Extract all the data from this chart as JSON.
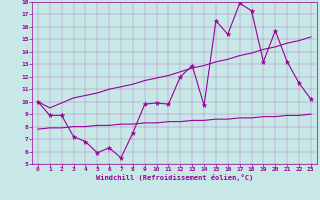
{
  "xlabel": "Windchill (Refroidissement éolien,°C)",
  "bg_color": "#c8e8e8",
  "line_color": "#990099",
  "xlim": [
    -0.5,
    23.5
  ],
  "ylim": [
    5,
    18
  ],
  "xticks": [
    0,
    1,
    2,
    3,
    4,
    5,
    6,
    7,
    8,
    9,
    10,
    11,
    12,
    13,
    14,
    15,
    16,
    17,
    18,
    19,
    20,
    21,
    22,
    23
  ],
  "yticks": [
    5,
    6,
    7,
    8,
    9,
    10,
    11,
    12,
    13,
    14,
    15,
    16,
    17,
    18
  ],
  "line1_x": [
    0,
    1,
    2,
    3,
    4,
    5,
    6,
    7,
    8,
    9,
    10,
    11,
    12,
    13,
    14,
    15,
    16,
    17,
    18,
    19,
    20,
    21,
    22,
    23
  ],
  "line1_y": [
    10.0,
    8.9,
    8.9,
    7.2,
    6.8,
    5.9,
    6.3,
    5.5,
    7.5,
    9.8,
    9.9,
    9.8,
    12.0,
    12.9,
    9.7,
    16.5,
    15.4,
    17.9,
    17.3,
    13.2,
    15.7,
    13.2,
    11.5,
    10.2
  ],
  "line2_x": [
    0,
    1,
    2,
    3,
    4,
    5,
    6,
    7,
    8,
    9,
    10,
    11,
    12,
    13,
    14,
    15,
    16,
    17,
    18,
    19,
    20,
    21,
    22,
    23
  ],
  "line2_y": [
    10.0,
    9.5,
    9.9,
    10.3,
    10.5,
    10.7,
    11.0,
    11.2,
    11.4,
    11.7,
    11.9,
    12.1,
    12.4,
    12.7,
    12.9,
    13.2,
    13.4,
    13.7,
    13.9,
    14.2,
    14.4,
    14.7,
    14.9,
    15.2
  ],
  "line3_x": [
    0,
    1,
    2,
    3,
    4,
    5,
    6,
    7,
    8,
    9,
    10,
    11,
    12,
    13,
    14,
    15,
    16,
    17,
    18,
    19,
    20,
    21,
    22,
    23
  ],
  "line3_y": [
    7.8,
    7.9,
    7.9,
    8.0,
    8.0,
    8.1,
    8.1,
    8.2,
    8.2,
    8.3,
    8.3,
    8.4,
    8.4,
    8.5,
    8.5,
    8.6,
    8.6,
    8.7,
    8.7,
    8.8,
    8.8,
    8.9,
    8.9,
    9.0
  ]
}
